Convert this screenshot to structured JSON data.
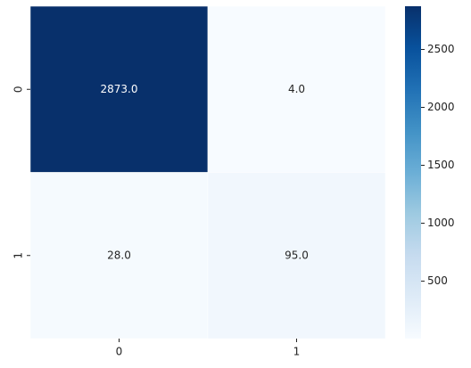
{
  "chart_data": {
    "type": "heatmap",
    "rows": [
      "0",
      "1"
    ],
    "columns": [
      "0",
      "1"
    ],
    "values": [
      [
        2873,
        4
      ],
      [
        28,
        95
      ]
    ],
    "value_labels": [
      [
        "2873.0",
        "4.0"
      ],
      [
        "28.0",
        "95.0"
      ]
    ],
    "cmap": "Blues",
    "clim": [
      4,
      2873
    ],
    "cticks": [
      500,
      1000,
      1500,
      2000,
      2500
    ]
  }
}
